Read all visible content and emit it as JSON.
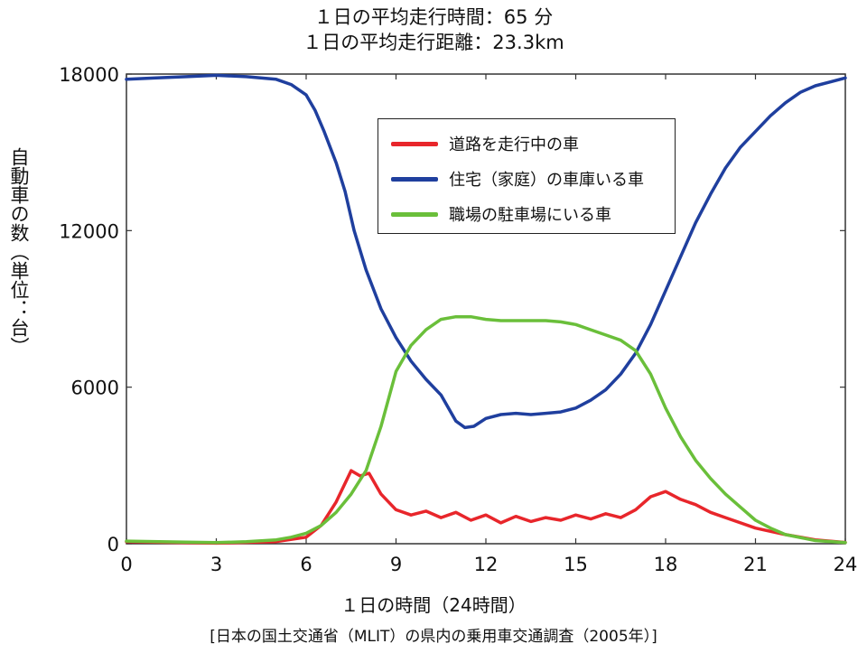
{
  "header": {
    "line1": "１日の平均走行時間：65 分",
    "line2": "１日の平均走行距離：23.3km"
  },
  "axes": {
    "ylabel": "自動車の数（単位：台）",
    "xlabel": "１日の時間（24時間）"
  },
  "source": "[日本の国土交通省（MLIT）の県内の乗用車交通調査（2005年）]",
  "chart_data": {
    "type": "line",
    "x_range": [
      0,
      24
    ],
    "y_range": [
      0,
      18000
    ],
    "x_ticks": [
      0,
      3,
      6,
      9,
      12,
      15,
      18,
      21,
      24
    ],
    "y_ticks": [
      0,
      6000,
      12000,
      18000
    ],
    "grid": false,
    "legend_position": "top-right",
    "series": [
      {
        "name": "道路を走行中の車",
        "color": "#e8262b",
        "points": [
          [
            0,
            80
          ],
          [
            3,
            20
          ],
          [
            5,
            80
          ],
          [
            6,
            250
          ],
          [
            6.5,
            700
          ],
          [
            7,
            1600
          ],
          [
            7.5,
            2800
          ],
          [
            7.8,
            2600
          ],
          [
            8.1,
            2700
          ],
          [
            8.5,
            1900
          ],
          [
            9,
            1300
          ],
          [
            9.5,
            1100
          ],
          [
            10,
            1250
          ],
          [
            10.5,
            1000
          ],
          [
            11,
            1200
          ],
          [
            11.5,
            900
          ],
          [
            12,
            1100
          ],
          [
            12.5,
            800
          ],
          [
            13,
            1050
          ],
          [
            13.5,
            850
          ],
          [
            14,
            1000
          ],
          [
            14.5,
            900
          ],
          [
            15,
            1100
          ],
          [
            15.5,
            950
          ],
          [
            16,
            1150
          ],
          [
            16.5,
            1000
          ],
          [
            17,
            1300
          ],
          [
            17.5,
            1800
          ],
          [
            18,
            2000
          ],
          [
            18.5,
            1700
          ],
          [
            19,
            1500
          ],
          [
            19.5,
            1200
          ],
          [
            20,
            1000
          ],
          [
            20.5,
            800
          ],
          [
            21,
            600
          ],
          [
            22,
            350
          ],
          [
            23,
            150
          ],
          [
            24,
            50
          ]
        ]
      },
      {
        "name": "住宅（家庭）の車庫いる車",
        "color": "#1f3f9e",
        "points": [
          [
            0,
            17800
          ],
          [
            1,
            17850
          ],
          [
            2,
            17900
          ],
          [
            3,
            17950
          ],
          [
            4,
            17900
          ],
          [
            5,
            17800
          ],
          [
            5.5,
            17600
          ],
          [
            6,
            17200
          ],
          [
            6.3,
            16600
          ],
          [
            6.6,
            15800
          ],
          [
            7,
            14600
          ],
          [
            7.3,
            13500
          ],
          [
            7.6,
            12000
          ],
          [
            8,
            10500
          ],
          [
            8.5,
            9000
          ],
          [
            9,
            7900
          ],
          [
            9.5,
            7000
          ],
          [
            10,
            6300
          ],
          [
            10.5,
            5700
          ],
          [
            11,
            4700
          ],
          [
            11.3,
            4450
          ],
          [
            11.6,
            4500
          ],
          [
            12,
            4800
          ],
          [
            12.5,
            4950
          ],
          [
            13,
            5000
          ],
          [
            13.5,
            4950
          ],
          [
            14,
            5000
          ],
          [
            14.5,
            5050
          ],
          [
            15,
            5200
          ],
          [
            15.5,
            5500
          ],
          [
            16,
            5900
          ],
          [
            16.5,
            6500
          ],
          [
            17,
            7300
          ],
          [
            17.5,
            8400
          ],
          [
            18,
            9700
          ],
          [
            18.5,
            11000
          ],
          [
            19,
            12300
          ],
          [
            19.5,
            13400
          ],
          [
            20,
            14400
          ],
          [
            20.5,
            15200
          ],
          [
            21,
            15800
          ],
          [
            21.5,
            16400
          ],
          [
            22,
            16900
          ],
          [
            22.5,
            17300
          ],
          [
            23,
            17550
          ],
          [
            23.5,
            17700
          ],
          [
            24,
            17850
          ]
        ]
      },
      {
        "name": "職場の駐車場にいる車",
        "color": "#6abf3a",
        "points": [
          [
            0,
            100
          ],
          [
            2,
            60
          ],
          [
            3,
            40
          ],
          [
            4,
            80
          ],
          [
            5,
            150
          ],
          [
            5.5,
            250
          ],
          [
            6,
            400
          ],
          [
            6.5,
            700
          ],
          [
            7,
            1200
          ],
          [
            7.5,
            1900
          ],
          [
            8,
            2800
          ],
          [
            8.5,
            4500
          ],
          [
            9,
            6600
          ],
          [
            9.5,
            7600
          ],
          [
            10,
            8200
          ],
          [
            10.5,
            8600
          ],
          [
            11,
            8700
          ],
          [
            11.5,
            8700
          ],
          [
            12,
            8600
          ],
          [
            12.5,
            8550
          ],
          [
            13,
            8550
          ],
          [
            13.5,
            8550
          ],
          [
            14,
            8550
          ],
          [
            14.5,
            8500
          ],
          [
            15,
            8400
          ],
          [
            15.5,
            8200
          ],
          [
            16,
            8000
          ],
          [
            16.5,
            7800
          ],
          [
            17,
            7400
          ],
          [
            17.5,
            6500
          ],
          [
            18,
            5200
          ],
          [
            18.5,
            4100
          ],
          [
            19,
            3200
          ],
          [
            19.5,
            2500
          ],
          [
            20,
            1900
          ],
          [
            20.5,
            1400
          ],
          [
            21,
            900
          ],
          [
            21.5,
            600
          ],
          [
            22,
            350
          ],
          [
            23,
            120
          ],
          [
            24,
            40
          ]
        ]
      }
    ]
  }
}
